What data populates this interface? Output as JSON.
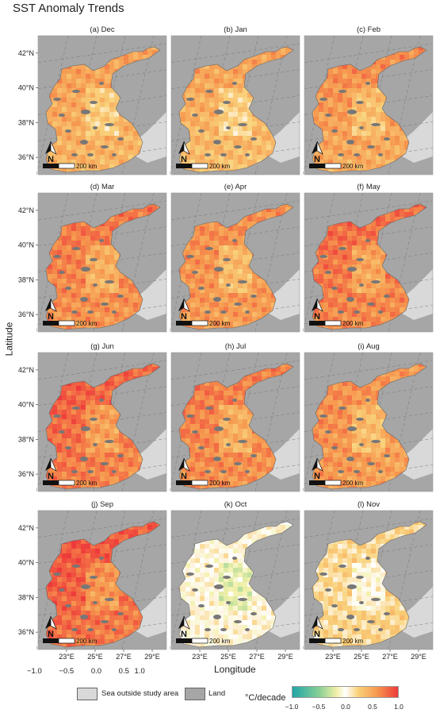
{
  "figure": {
    "title": "SST Anomaly Trends",
    "ylabel": "Latitude",
    "xlabel": "Longitude"
  },
  "chart_data": {
    "type": "heatmap",
    "title": "SST Anomaly Trends",
    "xlabel": "Longitude",
    "ylabel": "Latitude",
    "x_ticks": [
      "23°E",
      "25°E",
      "27°E",
      "29°E"
    ],
    "y_ticks": [
      "42°N",
      "40°N",
      "38°N",
      "36°N"
    ],
    "xlim": [
      21,
      30
    ],
    "ylim": [
      35,
      43
    ],
    "extra_tick_labels": [
      "−1.0",
      "−0.5",
      "0.0",
      "0.5",
      "1.0"
    ],
    "panels": [
      {
        "label": "(a) Dec",
        "month": "Dec",
        "north": 0.65,
        "south": 0.38,
        "west": 0.5,
        "east": 0.4
      },
      {
        "label": "(b) Jan",
        "month": "Jan",
        "north": 0.75,
        "south": 0.35,
        "west": 0.35,
        "east": 0.3
      },
      {
        "label": "(c) Feb",
        "month": "Feb",
        "north": 0.85,
        "south": 0.45,
        "west": 0.5,
        "east": 0.4
      },
      {
        "label": "(d) Mar",
        "month": "Mar",
        "north": 0.85,
        "south": 0.55,
        "west": 0.7,
        "east": 0.6
      },
      {
        "label": "(e) Apr",
        "month": "Apr",
        "north": 0.7,
        "south": 0.55,
        "west": 0.6,
        "east": 0.55
      },
      {
        "label": "(f) May",
        "month": "May",
        "north": 0.9,
        "south": 0.6,
        "west": 0.75,
        "east": 0.6
      },
      {
        "label": "(g) Jun",
        "month": "Jun",
        "north": 0.95,
        "south": 0.6,
        "west": 0.9,
        "east": 0.55
      },
      {
        "label": "(h) Jul",
        "month": "Jul",
        "north": 0.8,
        "south": 0.6,
        "west": 0.7,
        "east": 0.55
      },
      {
        "label": "(i) Aug",
        "month": "Aug",
        "north": 0.65,
        "south": 0.5,
        "west": 0.75,
        "east": 0.45
      },
      {
        "label": "(j) Sep",
        "month": "Sep",
        "north": 1.0,
        "south": 0.65,
        "west": 0.95,
        "east": 0.6
      },
      {
        "label": "(k) Oct",
        "month": "Oct",
        "north": 0.05,
        "south": 0.05,
        "west": 0.0,
        "east": 0.05
      },
      {
        "label": "(l) Nov",
        "month": "Nov",
        "north": 0.2,
        "south": 0.25,
        "west": 0.15,
        "east": 0.3
      }
    ],
    "scalebar_label": "200 km",
    "north_arrow_label": "N",
    "legend": {
      "keys": [
        {
          "label": "Sea outside study area",
          "color": "#d9d9d9"
        },
        {
          "label": "Land",
          "color": "#a6a6a6"
        }
      ],
      "colorbar": {
        "title": "°C/decade",
        "range": [
          -1.0,
          1.0
        ],
        "ticks": [
          "−1.0",
          "−0.5",
          "0.0",
          "0.5",
          "1.0"
        ],
        "tick_values": [
          -1.0,
          -0.5,
          0.0,
          0.5,
          1.0
        ],
        "colors": [
          "#1fa5a8",
          "#7fcd9a",
          "#f2efa0",
          "#ffffff",
          "#f8d07a",
          "#f59a52",
          "#ef3b3b"
        ]
      }
    },
    "colors": {
      "sea_outside": "#d9d9d9",
      "land": "#a6a6a6",
      "background": "#ffffff"
    }
  }
}
